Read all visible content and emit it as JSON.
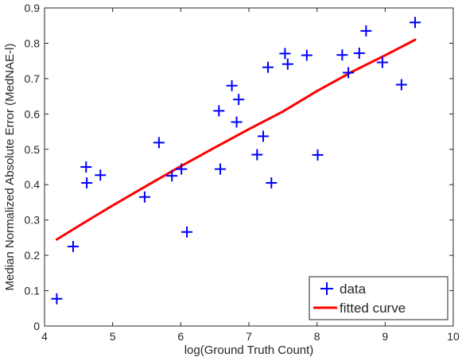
{
  "chart_data": {
    "type": "scatter",
    "title": "",
    "xlabel": "log(Ground Truth Count)",
    "ylabel": "Median Normalized Absolute Error (MedNAE-l)",
    "xlim": [
      4,
      10
    ],
    "ylim": [
      0,
      0.9
    ],
    "xticks": [
      4,
      5,
      6,
      7,
      8,
      9,
      10
    ],
    "yticks": [
      0,
      0.1,
      0.2,
      0.3,
      0.4,
      0.5,
      0.6,
      0.7,
      0.8,
      0.9
    ],
    "xtick_labels": [
      "4",
      "5",
      "6",
      "7",
      "8",
      "9",
      "10"
    ],
    "ytick_labels": [
      "0",
      "0.1",
      "0.2",
      "0.3",
      "0.4",
      "0.5",
      "0.6",
      "0.7",
      "0.8",
      "0.9"
    ],
    "grid": false,
    "legend": {
      "position": "bottom-right",
      "entries": [
        "data",
        "fitted curve"
      ]
    },
    "series": [
      {
        "name": "data",
        "kind": "scatter",
        "marker": "plus",
        "color": "#0000ff",
        "points": [
          {
            "x": 4.18,
            "y": 0.077
          },
          {
            "x": 4.42,
            "y": 0.225
          },
          {
            "x": 4.61,
            "y": 0.45
          },
          {
            "x": 4.62,
            "y": 0.405
          },
          {
            "x": 4.82,
            "y": 0.427
          },
          {
            "x": 5.47,
            "y": 0.365
          },
          {
            "x": 5.68,
            "y": 0.519
          },
          {
            "x": 5.87,
            "y": 0.425
          },
          {
            "x": 6.01,
            "y": 0.444
          },
          {
            "x": 6.09,
            "y": 0.266
          },
          {
            "x": 6.56,
            "y": 0.609
          },
          {
            "x": 6.58,
            "y": 0.444
          },
          {
            "x": 6.75,
            "y": 0.68
          },
          {
            "x": 6.82,
            "y": 0.577
          },
          {
            "x": 6.85,
            "y": 0.641
          },
          {
            "x": 7.12,
            "y": 0.485
          },
          {
            "x": 7.21,
            "y": 0.537
          },
          {
            "x": 7.28,
            "y": 0.732
          },
          {
            "x": 7.33,
            "y": 0.405
          },
          {
            "x": 7.53,
            "y": 0.771
          },
          {
            "x": 7.57,
            "y": 0.741
          },
          {
            "x": 7.85,
            "y": 0.766
          },
          {
            "x": 8.01,
            "y": 0.484
          },
          {
            "x": 8.37,
            "y": 0.767
          },
          {
            "x": 8.46,
            "y": 0.717
          },
          {
            "x": 8.62,
            "y": 0.772
          },
          {
            "x": 8.72,
            "y": 0.835
          },
          {
            "x": 8.96,
            "y": 0.746
          },
          {
            "x": 9.24,
            "y": 0.683
          },
          {
            "x": 9.44,
            "y": 0.859
          }
        ]
      },
      {
        "name": "fitted curve",
        "kind": "line",
        "color": "#ff0000",
        "points": [
          {
            "x": 4.18,
            "y": 0.245
          },
          {
            "x": 4.5,
            "y": 0.283
          },
          {
            "x": 5.0,
            "y": 0.341
          },
          {
            "x": 5.5,
            "y": 0.397
          },
          {
            "x": 6.0,
            "y": 0.452
          },
          {
            "x": 6.5,
            "y": 0.505
          },
          {
            "x": 7.0,
            "y": 0.557
          },
          {
            "x": 7.5,
            "y": 0.607
          },
          {
            "x": 8.0,
            "y": 0.665
          },
          {
            "x": 8.5,
            "y": 0.718
          },
          {
            "x": 9.0,
            "y": 0.766
          },
          {
            "x": 9.44,
            "y": 0.81
          }
        ]
      }
    ]
  }
}
